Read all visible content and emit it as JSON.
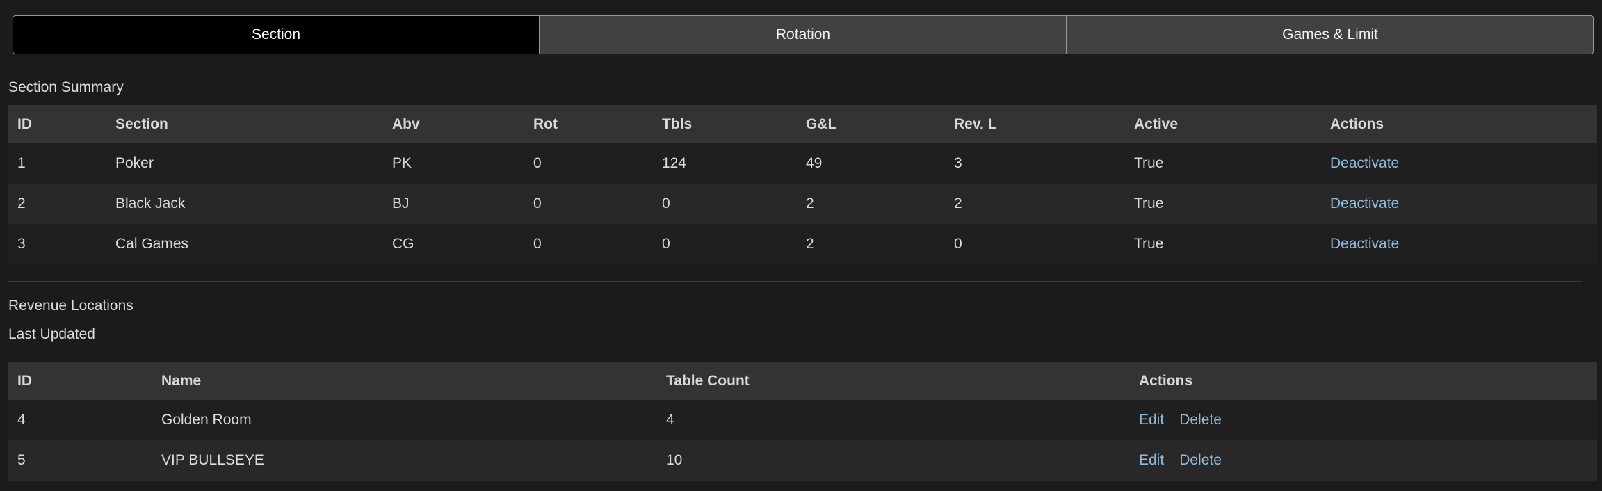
{
  "tabs": [
    {
      "label": "Section",
      "active": true
    },
    {
      "label": "Rotation",
      "active": false
    },
    {
      "label": "Games & Limit",
      "active": false
    }
  ],
  "section_summary": {
    "title": "Section Summary",
    "columns": [
      "ID",
      "Section",
      "Abv",
      "Rot",
      "Tbls",
      "G&L",
      "Rev. L",
      "Active",
      "Actions"
    ],
    "rows": [
      {
        "id": "1",
        "section": "Poker",
        "abv": "PK",
        "rot": "0",
        "tbls": "124",
        "gl": "49",
        "revl": "3",
        "active": "True",
        "action": "Deactivate"
      },
      {
        "id": "2",
        "section": "Black Jack",
        "abv": "BJ",
        "rot": "0",
        "tbls": "0",
        "gl": "2",
        "revl": "2",
        "active": "True",
        "action": "Deactivate"
      },
      {
        "id": "3",
        "section": "Cal Games",
        "abv": "CG",
        "rot": "0",
        "tbls": "0",
        "gl": "2",
        "revl": "0",
        "active": "True",
        "action": "Deactivate"
      }
    ]
  },
  "revenue_locations": {
    "title": "Revenue Locations",
    "last_updated": "Last Updated",
    "columns": [
      "ID",
      "Name",
      "Table Count",
      "Actions"
    ],
    "rows": [
      {
        "id": "4",
        "name": "Golden Room",
        "table_count": "4",
        "edit": "Edit",
        "delete": "Delete"
      },
      {
        "id": "5",
        "name": "VIP BULLSEYE",
        "table_count": "10",
        "edit": "Edit",
        "delete": "Delete"
      }
    ]
  },
  "colors": {
    "background": "#1b1b1b",
    "header": "#333333",
    "link": "#8fbcdc",
    "active_tab": "#000000",
    "tab": "#414141"
  }
}
